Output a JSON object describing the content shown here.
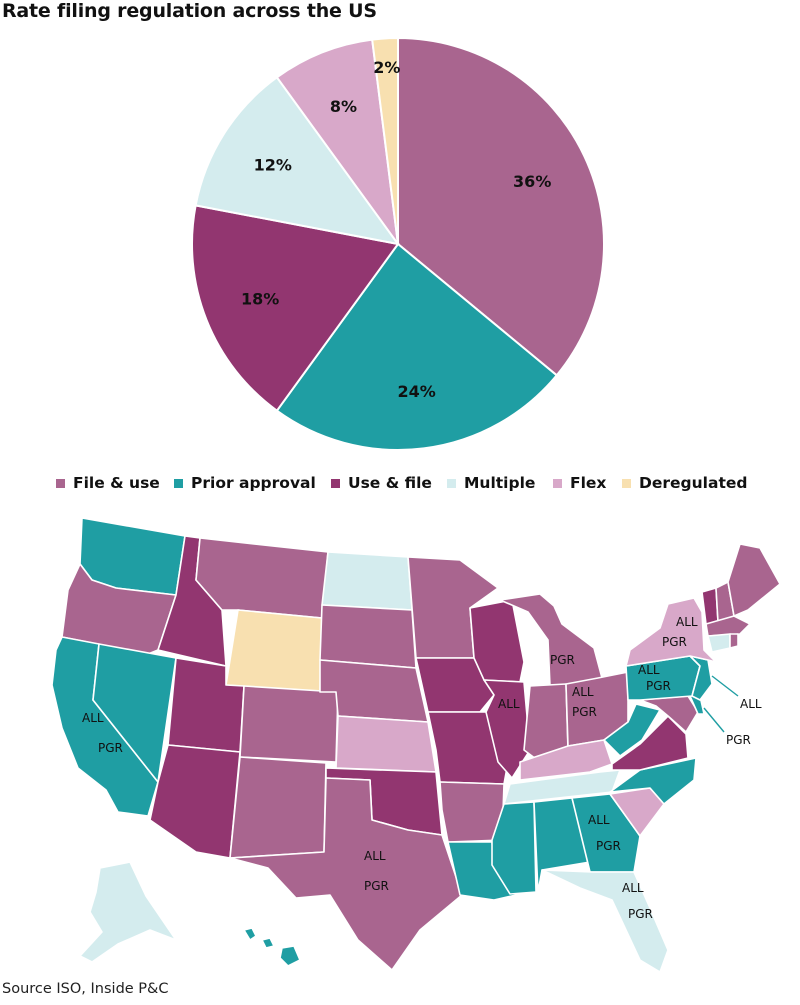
{
  "colors": {
    "file_use": "#a9658f",
    "prior_approval": "#1f9ea3",
    "use_file": "#923670",
    "multiple": "#d4ecee",
    "flex": "#d8a8c9",
    "deregulated": "#f8e0b0"
  },
  "chart_data": [
    {
      "type": "pie",
      "title": "Rate filing regulation across the US",
      "slices": [
        {
          "name": "File & use",
          "value": 36,
          "label": "36%",
          "color_key": "file_use"
        },
        {
          "name": "Prior approval",
          "value": 24,
          "label": "24%",
          "color_key": "prior_approval"
        },
        {
          "name": "Use & file",
          "value": 18,
          "label": "18%",
          "color_key": "use_file"
        },
        {
          "name": "Multiple",
          "value": 12,
          "label": "12%",
          "color_key": "multiple"
        },
        {
          "name": "Flex",
          "value": 8,
          "label": "8%",
          "color_key": "flex"
        },
        {
          "name": "Deregulated",
          "value": 2,
          "label": "2%",
          "color_key": "deregulated"
        }
      ],
      "legend": {
        "placement": "bottom",
        "entries": [
          "File & use",
          "Prior approval",
          "Use & file",
          "Multiple",
          "Flex",
          "Deregulated"
        ]
      }
    }
  ],
  "map": {
    "annotations": [
      {
        "id": "ca",
        "lines": [
          "ALL",
          "PGR"
        ]
      },
      {
        "id": "tx",
        "lines": [
          "ALL",
          "PGR"
        ]
      },
      {
        "id": "il",
        "lines": [
          "ALL"
        ]
      },
      {
        "id": "mi",
        "lines": [
          "PGR"
        ]
      },
      {
        "id": "oh",
        "lines": [
          "ALL",
          "PGR"
        ]
      },
      {
        "id": "pa",
        "lines": [
          "ALL",
          "PGR"
        ]
      },
      {
        "id": "ny",
        "lines": [
          "ALL",
          "PGR"
        ]
      },
      {
        "id": "nj",
        "lines": [
          "ALL"
        ]
      },
      {
        "id": "md",
        "lines": [
          "PGR"
        ]
      },
      {
        "id": "ga",
        "lines": [
          "ALL",
          "PGR"
        ]
      },
      {
        "id": "fl",
        "lines": [
          "ALL",
          "PGR"
        ]
      }
    ]
  },
  "source": "Source ISO, Inside P&C"
}
